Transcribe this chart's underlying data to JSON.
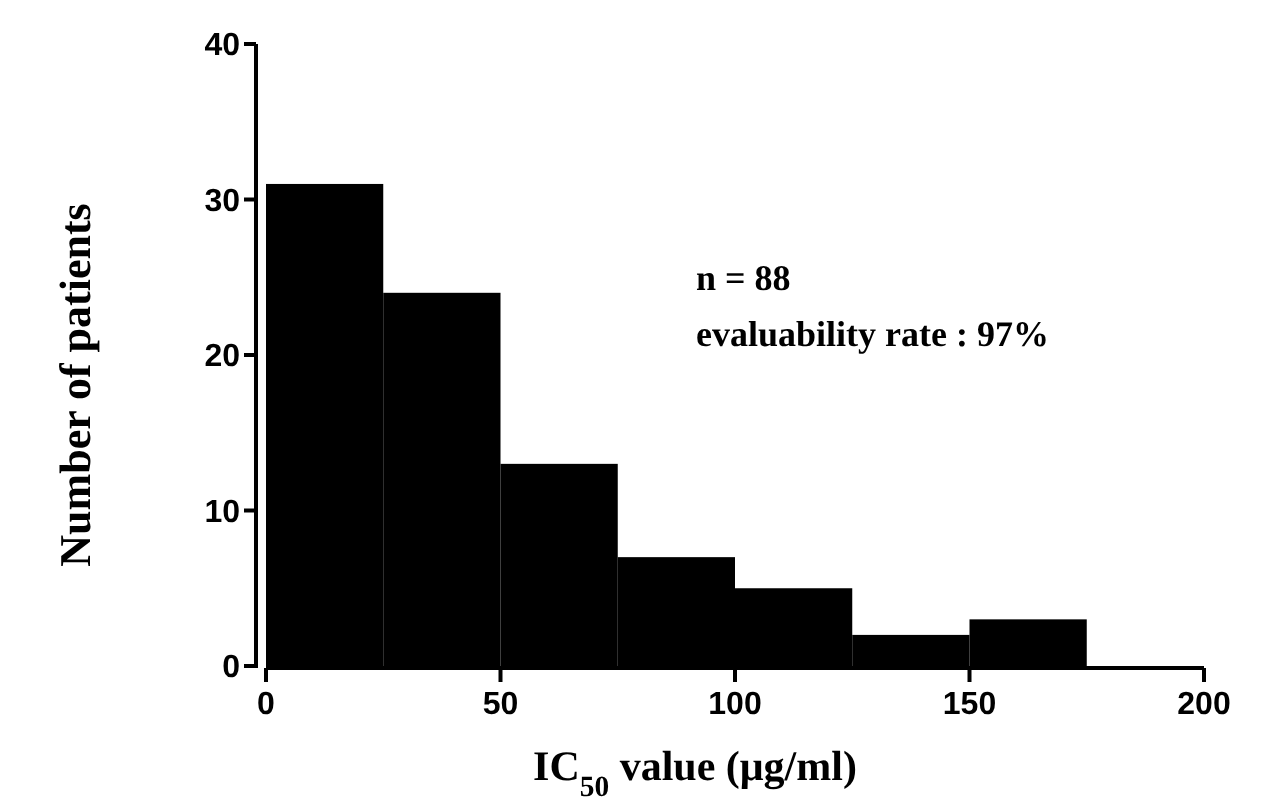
{
  "chart_data": {
    "type": "histogram",
    "xlabel": "IC$_{50}$ value (μg/ml)",
    "ylabel": "Number of patients",
    "bins": [
      0,
      25,
      50,
      75,
      100,
      125,
      150,
      175
    ],
    "values": [
      31,
      24,
      13,
      7,
      5,
      2,
      3
    ],
    "color": "#000000",
    "xlim": [
      0,
      200
    ],
    "xticks": [
      0,
      50,
      100,
      150,
      200
    ],
    "ylim": [
      0,
      40
    ],
    "yticks": [
      0,
      10,
      20,
      30,
      40
    ],
    "annotations": [
      "n = 88",
      "evaluability rate : 97%"
    ],
    "grid": false
  }
}
